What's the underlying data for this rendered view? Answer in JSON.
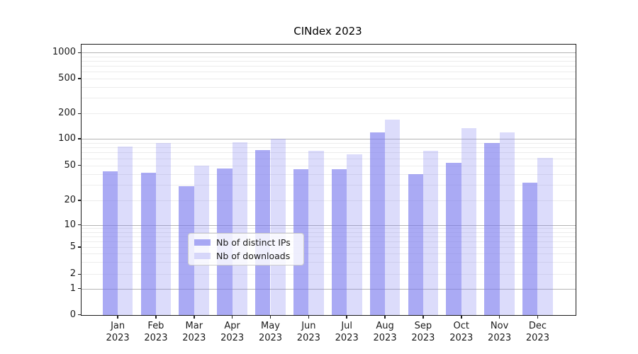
{
  "chart_data": {
    "type": "bar",
    "title": "CINdex 2023",
    "categories": [
      "Jan",
      "Feb",
      "Mar",
      "Apr",
      "May",
      "Jun",
      "Jul",
      "Aug",
      "Sep",
      "Oct",
      "Nov",
      "Dec"
    ],
    "year_label": "2023",
    "series": [
      {
        "name": "Nb of distinct IPs",
        "color": "#aaaaf2",
        "fill": "rgba(120,120,238,0.63)",
        "values": [
          43,
          41,
          29,
          46,
          75,
          45,
          45,
          118,
          40,
          53,
          90,
          32
        ]
      },
      {
        "name": "Nb of downloads",
        "color": "#dcdcfa",
        "fill": "rgba(130,130,240,0.28)",
        "values": [
          81,
          89,
          50,
          92,
          100,
          73,
          67,
          170,
          73,
          133,
          119,
          61
        ]
      }
    ],
    "xlabel": "",
    "ylabel": "",
    "y_ticks": [
      0,
      1,
      2,
      5,
      10,
      20,
      50,
      100,
      200,
      500,
      1000
    ],
    "yscale": "log-like with linear 0-1 segment",
    "ylim": [
      0,
      1400
    ],
    "grid": true,
    "legend_position": "lower center",
    "gridline_major_color": "#b4b4b4",
    "gridline_minor_color": "#ececec"
  }
}
